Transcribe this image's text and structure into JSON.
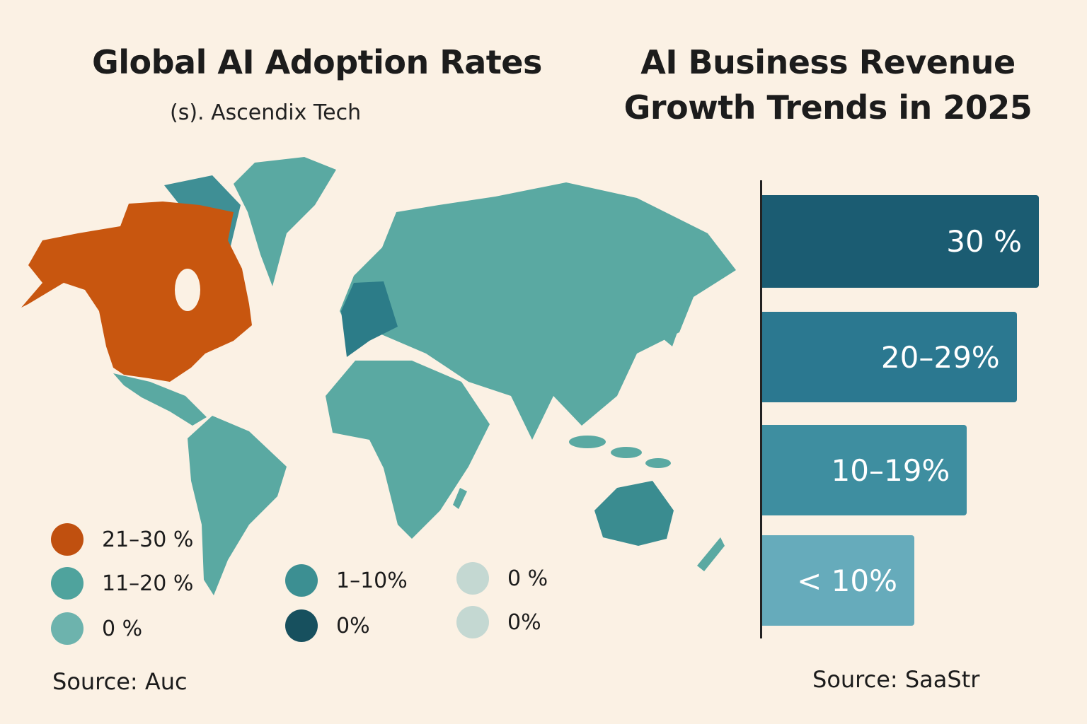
{
  "map_panel": {
    "title": "Global AI Adoption Rates",
    "subtitle": "(s). Ascendix Tech",
    "source": "Source: Auc",
    "colors": {
      "high": "#c8560f",
      "mid": "#5aa9a2",
      "dark": "#2f7f8a",
      "land": "#5aa9a2"
    },
    "legend": [
      {
        "label": "21–30 %",
        "color": "#c0500f"
      },
      {
        "label": "11–20 %",
        "color": "#4fa39d"
      },
      {
        "label": "0 %",
        "color": "#6db3ad"
      },
      {
        "label": "1–10%",
        "color": "#3c8f92"
      },
      {
        "label": "0%",
        "color": "#17505e"
      },
      {
        "label": "0 %",
        "color": "#c4d8d2"
      },
      {
        "label": "0%",
        "color": "#c4d8d2"
      }
    ]
  },
  "chart_data": {
    "type": "bar",
    "orientation": "horizontal",
    "title": "AI Business Revenue Growth Trends in 2025",
    "categories": [
      "30 %",
      "20–29%",
      "10–19%",
      "< 10%"
    ],
    "values": [
      1.0,
      0.92,
      0.74,
      0.55
    ],
    "colors": [
      "#1b5c72",
      "#2b7890",
      "#3e8ea0",
      "#66abbb"
    ],
    "xlabel": "",
    "ylabel": "",
    "grid": false,
    "source": "Source: SaaStr"
  }
}
